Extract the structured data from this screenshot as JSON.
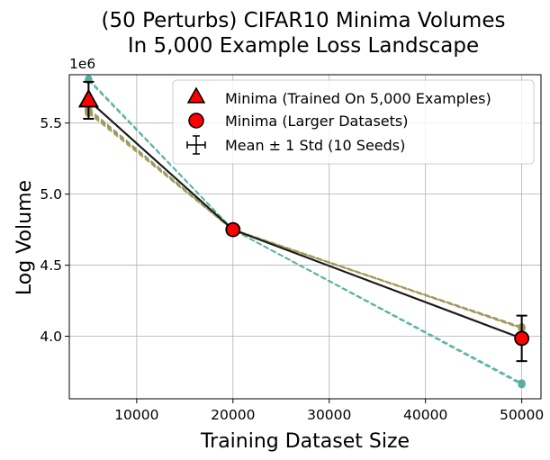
{
  "chart_data": {
    "type": "line",
    "title_lines": [
      "(50 Perturbs) CIFAR10 Minima Volumes",
      "In 5,000 Example Loss Landscape"
    ],
    "xlabel": "Training Dataset Size",
    "ylabel": "Log Volume",
    "y_offset_text": "1e6",
    "xlim": [
      3000,
      52000
    ],
    "ylim": [
      3560000,
      5840000
    ],
    "x_ticks": [
      10000,
      20000,
      30000,
      40000,
      50000
    ],
    "x_tick_labels": [
      "10000",
      "20000",
      "30000",
      "40000",
      "50000"
    ],
    "y_ticks": [
      4000000,
      4500000,
      5000000,
      5500000
    ],
    "y_tick_labels": [
      "4.0",
      "4.5",
      "5.0",
      "5.5"
    ],
    "grid": true,
    "legend_position": "top-right",
    "legend": [
      {
        "marker": "triangle",
        "label": "Minima (Trained On 5,000 Examples)"
      },
      {
        "marker": "circle",
        "label": "Minima (Larger Datasets)"
      },
      {
        "marker": "errorbar",
        "label": "Mean ± 1 Std (10 Seeds)"
      }
    ],
    "seed_series": [
      {
        "name": "seed-1",
        "color": "#4fb3aa",
        "x": [
          5000,
          20000,
          50000
        ],
        "y": [
          5810000,
          4750000,
          3660000
        ]
      },
      {
        "name": "seed-2",
        "color": "#5aae9c",
        "x": [
          5000,
          20000,
          50000
        ],
        "y": [
          5800000,
          4750000,
          3670000
        ]
      },
      {
        "name": "seed-3",
        "color": "#7c9a72",
        "x": [
          5000,
          20000,
          50000
        ],
        "y": [
          5600000,
          4750000,
          4060000
        ]
      },
      {
        "name": "seed-4",
        "color": "#8f9a60",
        "x": [
          5000,
          20000,
          50000
        ],
        "y": [
          5590000,
          4745000,
          4065000
        ]
      },
      {
        "name": "seed-5",
        "color": "#a39a55",
        "x": [
          5000,
          20000,
          50000
        ],
        "y": [
          5580000,
          4750000,
          4060000
        ]
      },
      {
        "name": "seed-6",
        "color": "#b09a50",
        "x": [
          5000,
          20000,
          50000
        ],
        "y": [
          5570000,
          4748000,
          4055000
        ]
      },
      {
        "name": "seed-7",
        "color": "#9e9858",
        "x": [
          5000,
          20000,
          50000
        ],
        "y": [
          5585000,
          4752000,
          4058000
        ]
      }
    ],
    "mean_series": {
      "name": "Mean",
      "color": "#1a1a1a",
      "x": [
        5000,
        20000,
        50000
      ],
      "y": [
        5660000,
        4750000,
        3985000
      ],
      "y_std": [
        130000,
        5000,
        160000
      ],
      "first_marker": "triangle",
      "other_marker": "circle",
      "marker_fill": "#ff0000"
    }
  }
}
